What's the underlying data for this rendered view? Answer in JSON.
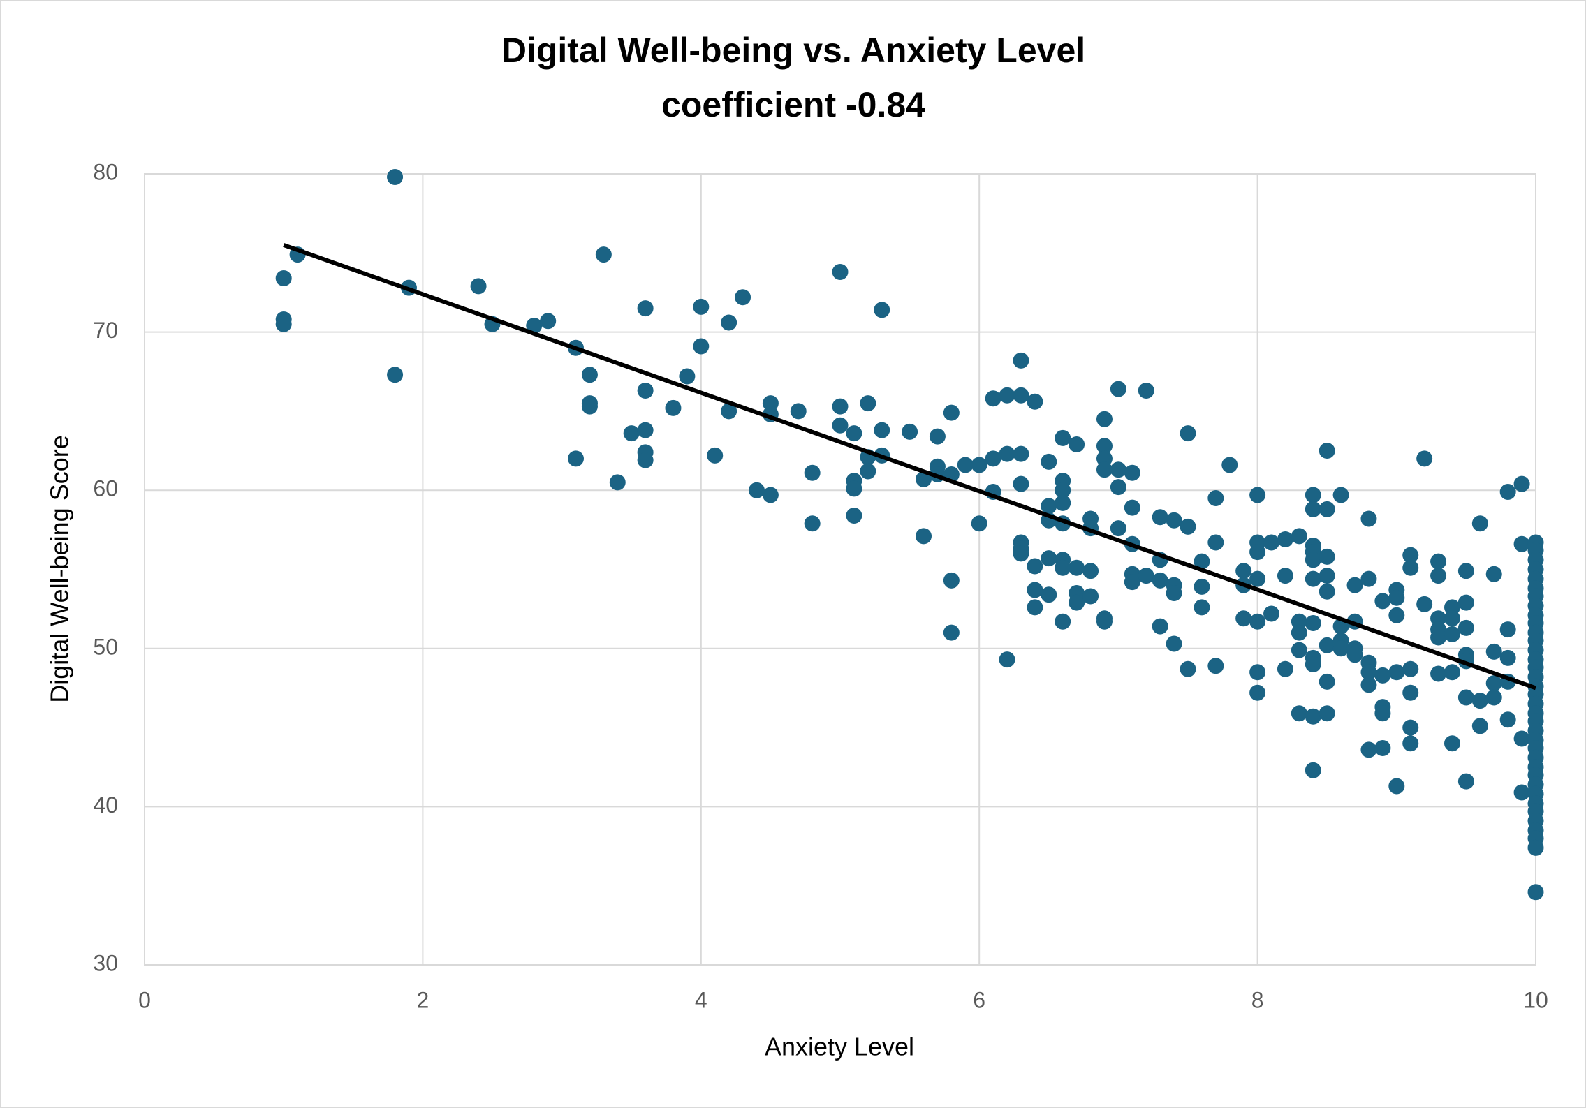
{
  "chart_data": {
    "type": "scatter",
    "title": "Digital Well-being vs. Anxiety Level",
    "subtitle": "coefficient -0.84",
    "x_label": "Anxiety Level",
    "y_label": "Digital Well-being Score",
    "color": "#1b6384",
    "x": [
      1.0,
      1.0,
      1.0,
      1.1,
      1.8,
      1.8,
      1.9,
      2.4,
      2.5,
      2.8,
      2.9,
      3.1,
      3.1,
      3.2,
      3.2,
      3.2,
      3.3,
      3.4,
      3.5,
      3.6,
      3.6,
      3.6,
      3.6,
      3.6,
      3.8,
      3.9,
      4.0,
      4.0,
      4.1,
      4.2,
      4.2,
      4.3,
      4.4,
      4.5,
      4.5,
      4.5,
      4.7,
      4.8,
      4.8,
      5.0,
      5.0,
      5.0,
      5.1,
      5.1,
      5.1,
      5.1,
      5.2,
      5.2,
      5.2,
      5.3,
      5.3,
      5.3,
      5.5,
      5.6,
      5.6,
      5.7,
      5.7,
      5.7,
      5.8,
      5.8,
      5.8,
      5.8,
      5.9,
      6.0,
      6.0,
      6.1,
      6.1,
      6.1,
      6.2,
      6.2,
      6.2,
      6.3,
      6.3,
      6.3,
      6.3,
      6.3,
      6.3,
      6.3,
      6.4,
      6.4,
      6.4,
      6.4,
      6.5,
      6.5,
      6.5,
      6.5,
      6.5,
      6.6,
      6.6,
      6.6,
      6.6,
      6.6,
      6.6,
      6.6,
      6.6,
      6.7,
      6.7,
      6.7,
      6.7,
      6.8,
      6.8,
      6.8,
      6.8,
      6.9,
      6.9,
      6.9,
      6.9,
      6.9,
      6.9,
      7.0,
      7.0,
      7.0,
      7.0,
      7.1,
      7.1,
      7.1,
      7.1,
      7.1,
      7.2,
      7.2,
      7.3,
      7.3,
      7.3,
      7.3,
      7.4,
      7.4,
      7.4,
      7.4,
      7.5,
      7.5,
      7.5,
      7.6,
      7.6,
      7.6,
      7.7,
      7.7,
      7.7,
      7.8,
      7.9,
      7.9,
      7.9,
      8.0,
      8.0,
      8.0,
      8.0,
      8.0,
      8.0,
      8.0,
      8.1,
      8.1,
      8.2,
      8.2,
      8.2,
      8.3,
      8.3,
      8.3,
      8.3,
      8.3,
      8.4,
      8.4,
      8.4,
      8.4,
      8.4,
      8.4,
      8.4,
      8.4,
      8.4,
      8.4,
      8.4,
      8.5,
      8.5,
      8.5,
      8.5,
      8.5,
      8.5,
      8.5,
      8.5,
      8.6,
      8.6,
      8.6,
      8.6,
      8.7,
      8.7,
      8.7,
      8.7,
      8.8,
      8.8,
      8.8,
      8.8,
      8.8,
      8.8,
      8.9,
      8.9,
      8.9,
      8.9,
      8.9,
      9.0,
      9.0,
      9.0,
      9.0,
      9.0,
      9.1,
      9.1,
      9.1,
      9.1,
      9.1,
      9.1,
      9.2,
      9.2,
      9.3,
      9.3,
      9.3,
      9.3,
      9.3,
      9.3,
      9.4,
      9.4,
      9.4,
      9.4,
      9.4,
      9.5,
      9.5,
      9.5,
      9.5,
      9.5,
      9.5,
      9.5,
      9.6,
      9.6,
      9.6,
      9.7,
      9.7,
      9.7,
      9.7,
      9.8,
      9.8,
      9.8,
      9.8,
      9.8,
      9.9,
      9.9,
      9.9,
      9.9,
      10,
      10,
      10,
      10,
      10,
      10,
      10,
      10,
      10,
      10,
      10,
      10,
      10,
      10,
      10,
      10,
      10,
      10,
      10,
      10,
      10,
      10,
      10,
      10,
      10,
      10,
      10,
      10,
      10,
      10,
      10,
      10,
      10,
      10,
      10,
      10
    ],
    "values": [
      73.4,
      70.8,
      70.5,
      74.9,
      79.8,
      67.3,
      72.8,
      72.9,
      70.5,
      70.4,
      70.7,
      69.0,
      62.0,
      67.3,
      65.5,
      65.3,
      74.9,
      60.5,
      63.6,
      71.5,
      66.3,
      63.8,
      62.4,
      61.9,
      65.2,
      67.2,
      71.6,
      69.1,
      62.2,
      70.6,
      65.0,
      72.2,
      60.0,
      65.5,
      64.8,
      59.7,
      65.0,
      61.1,
      57.9,
      73.8,
      65.3,
      64.1,
      63.6,
      60.6,
      60.1,
      58.4,
      65.5,
      62.1,
      61.2,
      71.4,
      63.8,
      62.2,
      63.7,
      60.7,
      57.1,
      63.4,
      61.5,
      61.0,
      64.9,
      61.0,
      54.3,
      51.0,
      61.6,
      61.6,
      57.9,
      65.8,
      62.0,
      59.9,
      66.0,
      62.3,
      49.3,
      68.2,
      66.0,
      62.3,
      60.4,
      56.7,
      56.3,
      56.0,
      65.6,
      55.2,
      53.7,
      52.6,
      61.8,
      59.0,
      58.1,
      55.7,
      53.4,
      63.3,
      60.6,
      60.0,
      59.2,
      57.9,
      55.6,
      55.1,
      51.7,
      62.9,
      55.1,
      53.5,
      52.9,
      58.2,
      57.6,
      54.9,
      53.3,
      64.5,
      62.8,
      62.0,
      61.3,
      51.9,
      51.7,
      66.4,
      61.3,
      60.2,
      57.6,
      61.1,
      58.9,
      56.6,
      54.7,
      54.2,
      66.3,
      54.6,
      58.3,
      55.6,
      54.3,
      51.4,
      58.1,
      54.0,
      53.5,
      50.3,
      63.6,
      57.7,
      48.7,
      55.5,
      53.9,
      52.6,
      59.5,
      56.7,
      48.9,
      61.6,
      54.9,
      54.0,
      51.9,
      59.7,
      56.7,
      56.1,
      54.4,
      51.7,
      48.5,
      47.2,
      56.7,
      52.2,
      56.9,
      54.6,
      48.7,
      57.1,
      51.7,
      51.0,
      49.9,
      45.9,
      59.7,
      58.8,
      56.5,
      56.1,
      55.6,
      54.4,
      51.6,
      49.4,
      49.0,
      45.7,
      42.3,
      62.5,
      58.8,
      55.8,
      54.6,
      53.6,
      50.2,
      47.9,
      45.9,
      59.7,
      51.4,
      50.5,
      50.0,
      54.0,
      51.7,
      50.0,
      49.6,
      58.2,
      54.4,
      49.1,
      48.5,
      47.7,
      43.6,
      53.0,
      48.3,
      46.3,
      45.9,
      43.7,
      53.7,
      53.2,
      52.1,
      48.5,
      41.3,
      55.9,
      55.1,
      48.7,
      47.2,
      45.0,
      44.0,
      62.0,
      52.8,
      55.5,
      54.6,
      51.9,
      51.2,
      50.7,
      48.4,
      52.6,
      51.9,
      50.9,
      48.5,
      44.0,
      54.9,
      52.9,
      51.3,
      49.6,
      49.2,
      46.9,
      41.6,
      57.9,
      46.7,
      45.1,
      54.7,
      49.8,
      47.8,
      46.9,
      59.9,
      51.2,
      49.4,
      47.9,
      45.5,
      60.4,
      56.6,
      44.3,
      40.9,
      56.7,
      56.2,
      55.6,
      55.0,
      54.4,
      53.8,
      53.3,
      52.7,
      52.1,
      51.6,
      51.0,
      50.5,
      49.9,
      49.3,
      48.8,
      48.2,
      47.6,
      47.1,
      46.5,
      45.9,
      45.4,
      44.8,
      44.2,
      43.7,
      43.1,
      42.5,
      42.0,
      41.4,
      40.8,
      40.2,
      39.7,
      39.1,
      38.5,
      38.0,
      37.4,
      34.6
    ],
    "trendline": {
      "x": [
        1,
        10
      ],
      "values": [
        75.5,
        47.5
      ],
      "color": "#000000"
    },
    "xlim": [
      0,
      10
    ],
    "ylim": [
      30,
      80
    ],
    "xticks": [
      0,
      2,
      4,
      6,
      8,
      10
    ],
    "yticks": [
      30,
      40,
      50,
      60,
      70,
      80
    ],
    "grid": true
  }
}
